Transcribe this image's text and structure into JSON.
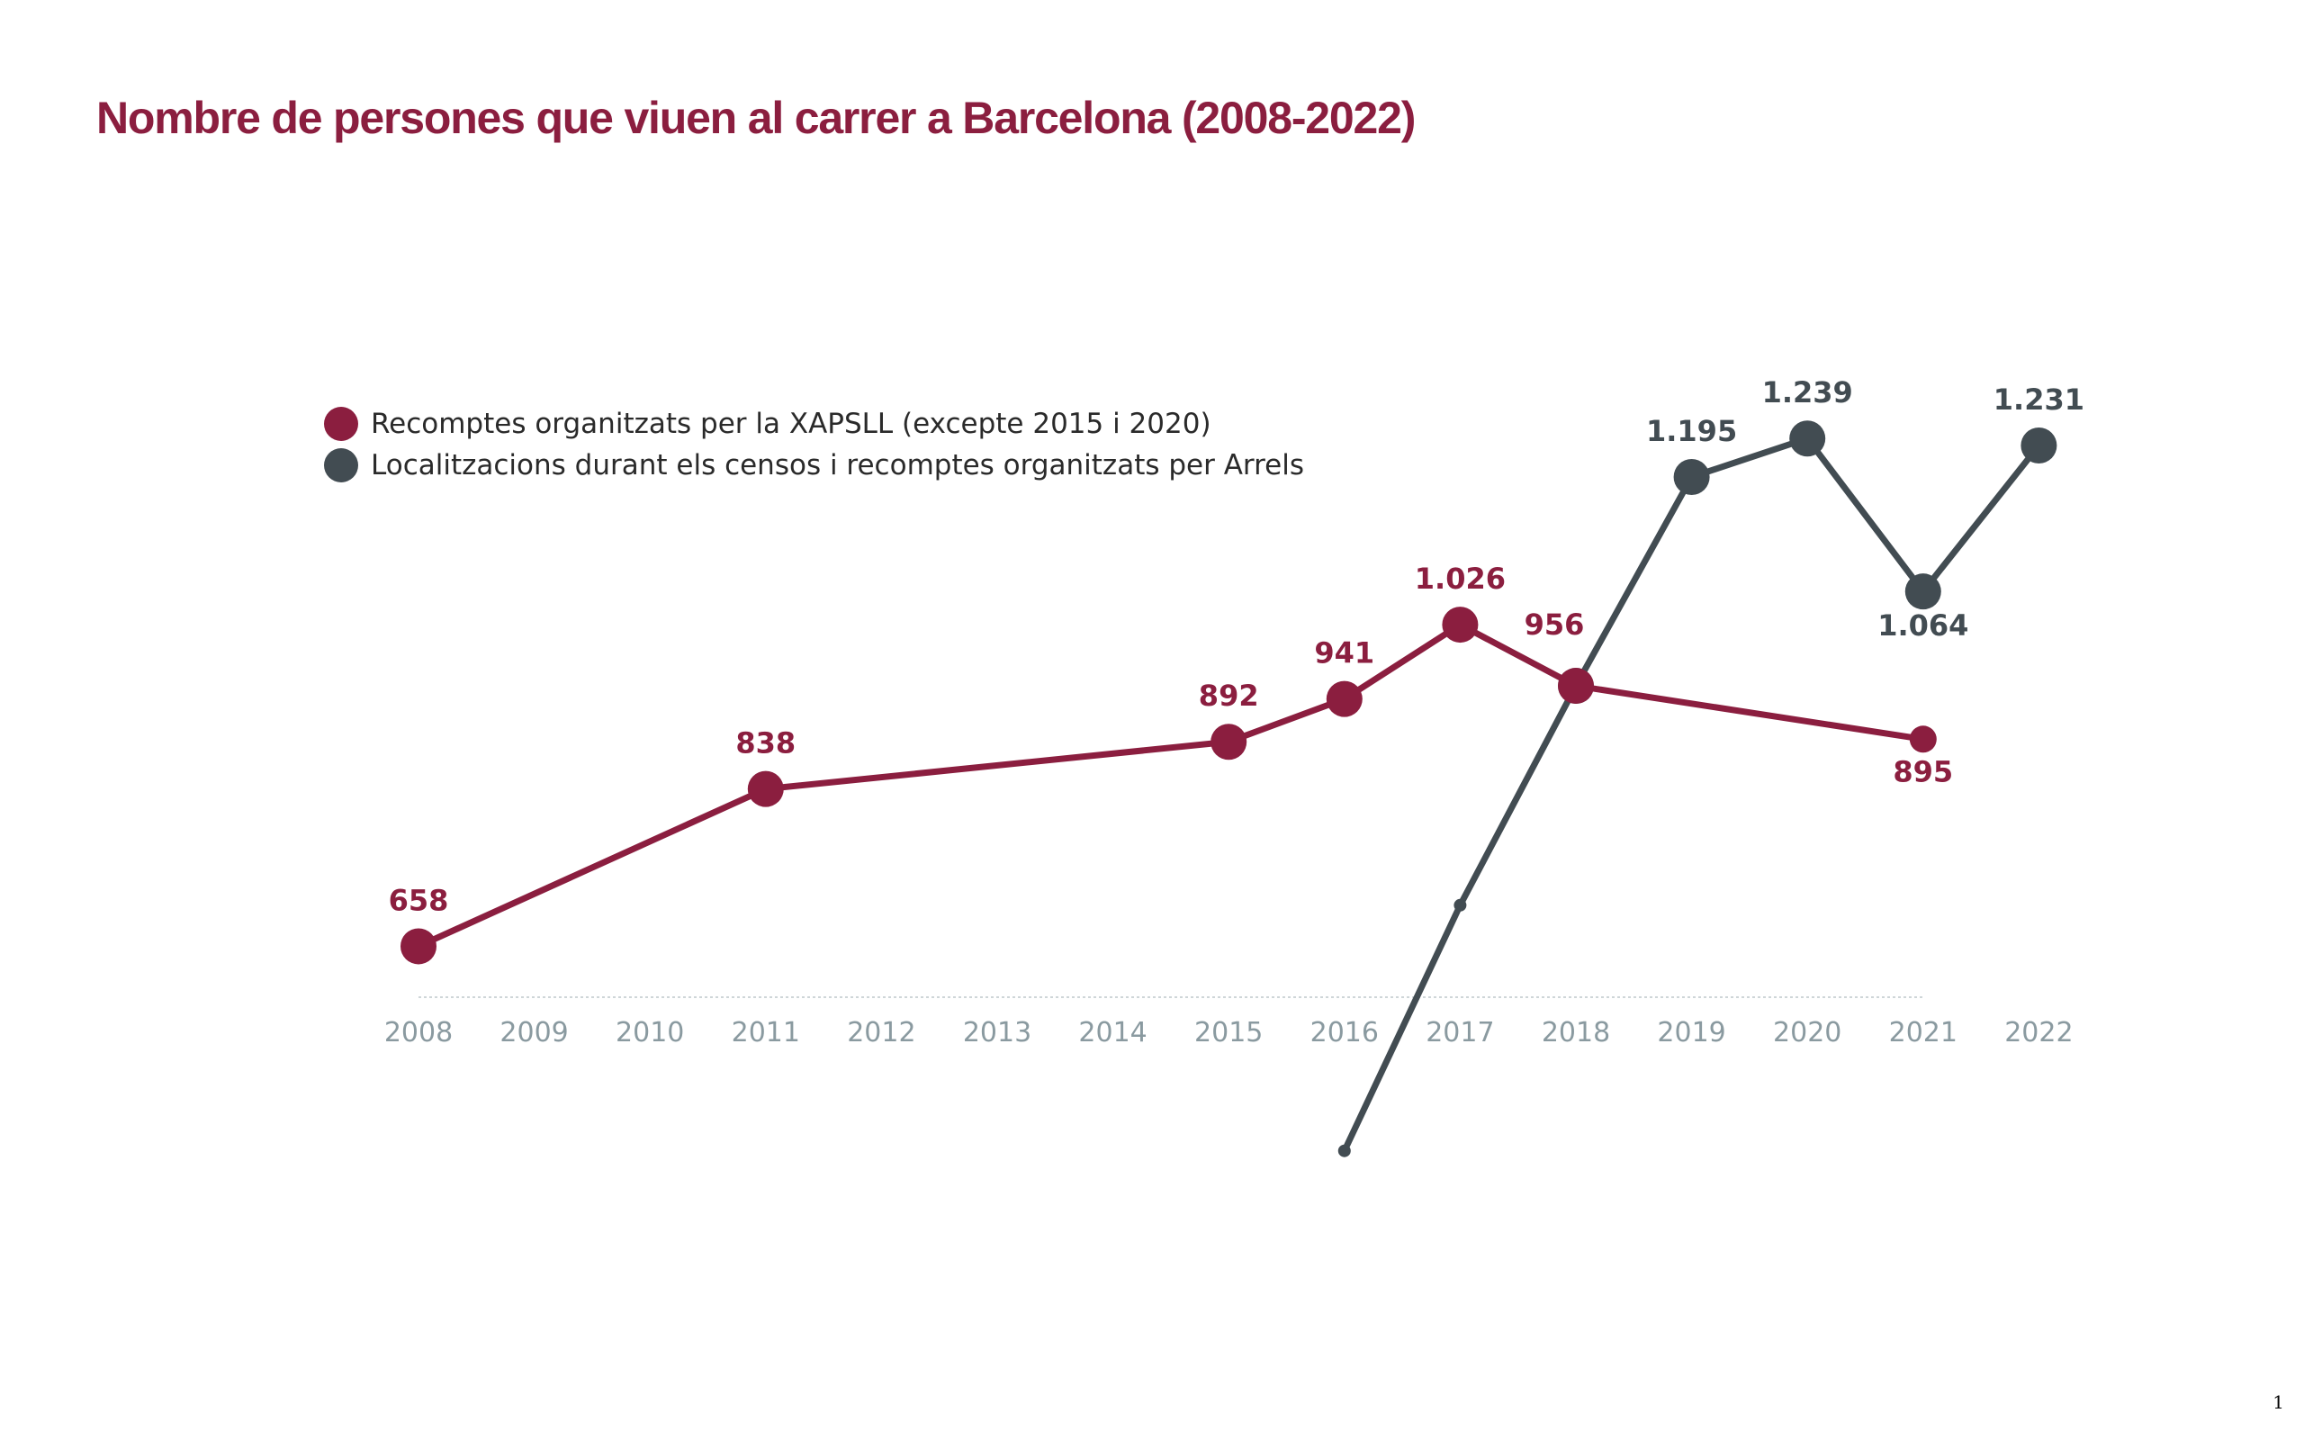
{
  "title": "Nombre de persones que viuen al carrer a Barcelona (2008-2022)",
  "page_number": "1",
  "colors": {
    "xapsll": "#8b1e3f",
    "arrels": "#424c52",
    "axis_text": "#8a9aa0",
    "baseline": "#cfd6d8"
  },
  "chart_data": {
    "type": "line",
    "title": "Nombre de persones que viuen al carrer a Barcelona (2008-2022)",
    "xlabel": "",
    "ylabel": "",
    "categories": [
      "2008",
      "2009",
      "2010",
      "2011",
      "2012",
      "2013",
      "2014",
      "2015",
      "2016",
      "2017",
      "2018",
      "2019",
      "2020",
      "2021",
      "2022"
    ],
    "ylim": [
      400,
      1300
    ],
    "grid": false,
    "legend": "top-left",
    "series": [
      {
        "name": "Recomptes organitzats per la XAPSLL (excepte 2015 i 2020)",
        "color": "#8b1e3f",
        "points": [
          {
            "x": "2008",
            "y": 658,
            "label": "658"
          },
          {
            "x": "2011",
            "y": 838,
            "label": "838"
          },
          {
            "x": "2015",
            "y": 892,
            "label": "892"
          },
          {
            "x": "2016",
            "y": 941,
            "label": "941"
          },
          {
            "x": "2017",
            "y": 1026,
            "label": "1.026"
          },
          {
            "x": "2018",
            "y": 956,
            "label": "956"
          },
          {
            "x": "2021",
            "y": 895,
            "label": "895"
          }
        ]
      },
      {
        "name": "Localitzacions durant els censos i recomptes organitzats per Arrels",
        "color": "#424c52",
        "points": [
          {
            "x": "2016",
            "y": 424,
            "label": ""
          },
          {
            "x": "2017",
            "y": 705,
            "label": ""
          },
          {
            "x": "2018",
            "y": 956,
            "label": ""
          },
          {
            "x": "2019",
            "y": 1195,
            "label": "1.195"
          },
          {
            "x": "2020",
            "y": 1239,
            "label": "1.239"
          },
          {
            "x": "2021",
            "y": 1064,
            "label": "1.064"
          },
          {
            "x": "2022",
            "y": 1231,
            "label": "1.231"
          }
        ]
      }
    ]
  }
}
